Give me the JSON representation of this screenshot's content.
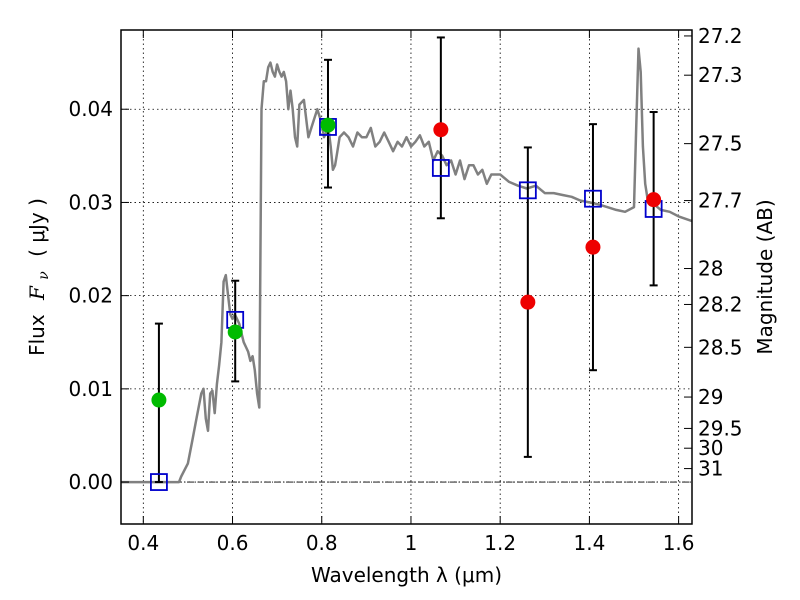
{
  "chart_data": {
    "type": "scatter",
    "xlabel": "Wavelength  λ (μm)",
    "ylabel": {
      "prefix": "Flux",
      "symbol": "F",
      "subscript": "ν",
      "unit": "( μJy )"
    },
    "y2label": "Magnitude (AB)",
    "xlim": [
      0.35,
      1.63
    ],
    "ylim": [
      -0.0045,
      0.0485
    ],
    "grid": true,
    "x_ticks": [
      {
        "value": 0.4,
        "label": "0.4"
      },
      {
        "value": 0.6,
        "label": "0.6"
      },
      {
        "value": 0.8,
        "label": "0.8"
      },
      {
        "value": 1.0,
        "label": "1"
      },
      {
        "value": 1.2,
        "label": "1.2"
      },
      {
        "value": 1.4,
        "label": "1.4"
      },
      {
        "value": 1.6,
        "label": "1.6"
      }
    ],
    "y_ticks": [
      {
        "value": 0.0,
        "label": "0.00"
      },
      {
        "value": 0.01,
        "label": "0.01"
      },
      {
        "value": 0.02,
        "label": "0.02"
      },
      {
        "value": 0.03,
        "label": "0.03"
      },
      {
        "value": 0.04,
        "label": "0.04"
      }
    ],
    "magnitude_ticks": [
      {
        "label": "27.2",
        "mag": 27.2
      },
      {
        "label": "27.3",
        "mag": 27.3
      },
      {
        "label": "27.5",
        "mag": 27.5
      },
      {
        "label": "27.7",
        "mag": 27.7
      },
      {
        "label": "28",
        "mag": 28.0
      },
      {
        "label": "28.2",
        "mag": 28.2
      },
      {
        "label": "28.5",
        "mag": 28.5
      },
      {
        "label": "29",
        "mag": 29.0
      },
      {
        "label": "29.5",
        "mag": 29.5
      },
      {
        "label": "30",
        "mag": 30.0
      },
      {
        "label": "31",
        "mag": 31.0
      }
    ],
    "model_spectrum": {
      "color": "#808080",
      "x": [
        0.35,
        0.48,
        0.485,
        0.5,
        0.51,
        0.52,
        0.53,
        0.535,
        0.54,
        0.545,
        0.55,
        0.555,
        0.56,
        0.565,
        0.57,
        0.575,
        0.58,
        0.585,
        0.59,
        0.595,
        0.6,
        0.605,
        0.61,
        0.615,
        0.62,
        0.625,
        0.63,
        0.635,
        0.64,
        0.645,
        0.65,
        0.655,
        0.66,
        0.665,
        0.67,
        0.675,
        0.68,
        0.685,
        0.69,
        0.695,
        0.7,
        0.705,
        0.71,
        0.715,
        0.72,
        0.725,
        0.73,
        0.735,
        0.74,
        0.745,
        0.75,
        0.76,
        0.77,
        0.78,
        0.79,
        0.8,
        0.805,
        0.81,
        0.815,
        0.82,
        0.825,
        0.83,
        0.835,
        0.84,
        0.85,
        0.86,
        0.87,
        0.88,
        0.89,
        0.9,
        0.91,
        0.92,
        0.93,
        0.94,
        0.95,
        0.96,
        0.97,
        0.98,
        0.99,
        1.0,
        1.01,
        1.02,
        1.03,
        1.04,
        1.05,
        1.06,
        1.07,
        1.08,
        1.09,
        1.1,
        1.11,
        1.12,
        1.13,
        1.14,
        1.15,
        1.16,
        1.17,
        1.18,
        1.2,
        1.22,
        1.24,
        1.26,
        1.28,
        1.3,
        1.32,
        1.34,
        1.36,
        1.38,
        1.4,
        1.42,
        1.44,
        1.46,
        1.48,
        1.5,
        1.505,
        1.51,
        1.515,
        1.52,
        1.525,
        1.53,
        1.54,
        1.56,
        1.58,
        1.6,
        1.63
      ],
      "y": [
        0.0,
        0.0,
        0.0006,
        0.002,
        0.0045,
        0.007,
        0.0095,
        0.01,
        0.0068,
        0.0055,
        0.0095,
        0.0098,
        0.0074,
        0.0105,
        0.0125,
        0.015,
        0.0215,
        0.0222,
        0.02,
        0.018,
        0.0175,
        0.018,
        0.0175,
        0.017,
        0.016,
        0.015,
        0.0145,
        0.014,
        0.013,
        0.0135,
        0.012,
        0.0095,
        0.008,
        0.04,
        0.043,
        0.043,
        0.0445,
        0.045,
        0.044,
        0.0435,
        0.0448,
        0.044,
        0.0435,
        0.044,
        0.043,
        0.04,
        0.042,
        0.04,
        0.037,
        0.036,
        0.0405,
        0.041,
        0.037,
        0.0385,
        0.04,
        0.0385,
        0.037,
        0.0375,
        0.038,
        0.036,
        0.0335,
        0.034,
        0.0355,
        0.037,
        0.0375,
        0.037,
        0.036,
        0.0375,
        0.037,
        0.037,
        0.038,
        0.036,
        0.0365,
        0.0375,
        0.0365,
        0.0355,
        0.0365,
        0.036,
        0.037,
        0.036,
        0.0365,
        0.0372,
        0.036,
        0.0365,
        0.0345,
        0.0355,
        0.035,
        0.034,
        0.0345,
        0.033,
        0.0345,
        0.0325,
        0.034,
        0.034,
        0.033,
        0.0335,
        0.032,
        0.033,
        0.033,
        0.0322,
        0.0318,
        0.0315,
        0.0318,
        0.031,
        0.031,
        0.0308,
        0.0306,
        0.0302,
        0.03,
        0.0298,
        0.0295,
        0.0292,
        0.029,
        0.0295,
        0.038,
        0.0465,
        0.044,
        0.036,
        0.032,
        0.0305,
        0.03,
        0.0292,
        0.029,
        0.0285,
        0.028
      ]
    },
    "series": [
      {
        "name": "",
        "marker": "open-square",
        "color": "#0000cc",
        "points": [
          {
            "x": 0.435,
            "y": 0.0
          },
          {
            "x": 0.606,
            "y": 0.0174
          },
          {
            "x": 0.814,
            "y": 0.0381
          },
          {
            "x": 1.067,
            "y": 0.0337
          },
          {
            "x": 1.262,
            "y": 0.0313
          },
          {
            "x": 1.408,
            "y": 0.0304
          },
          {
            "x": 1.544,
            "y": 0.0293
          }
        ]
      },
      {
        "name": "",
        "marker": "filled-circle",
        "color": "#00bb00",
        "points": [
          {
            "x": 0.435,
            "y": 0.0088
          },
          {
            "x": 0.606,
            "y": 0.0161
          },
          {
            "x": 0.814,
            "y": 0.0383
          }
        ]
      },
      {
        "name": "",
        "marker": "filled-circle",
        "color": "#ee0000",
        "points": [
          {
            "x": 1.067,
            "y": 0.0378
          },
          {
            "x": 1.262,
            "y": 0.0193
          },
          {
            "x": 1.408,
            "y": 0.0252
          },
          {
            "x": 1.544,
            "y": 0.0303
          }
        ]
      }
    ],
    "error_bars": [
      {
        "x": 0.435,
        "low": 0.0,
        "high": 0.017
      },
      {
        "x": 0.606,
        "low": 0.0108,
        "high": 0.0216
      },
      {
        "x": 0.814,
        "low": 0.0316,
        "high": 0.0453
      },
      {
        "x": 1.067,
        "low": 0.0283,
        "high": 0.0477
      },
      {
        "x": 1.262,
        "low": 0.0027,
        "high": 0.0359
      },
      {
        "x": 1.408,
        "low": 0.012,
        "high": 0.0384
      },
      {
        "x": 1.544,
        "low": 0.0211,
        "high": 0.0397
      }
    ]
  }
}
